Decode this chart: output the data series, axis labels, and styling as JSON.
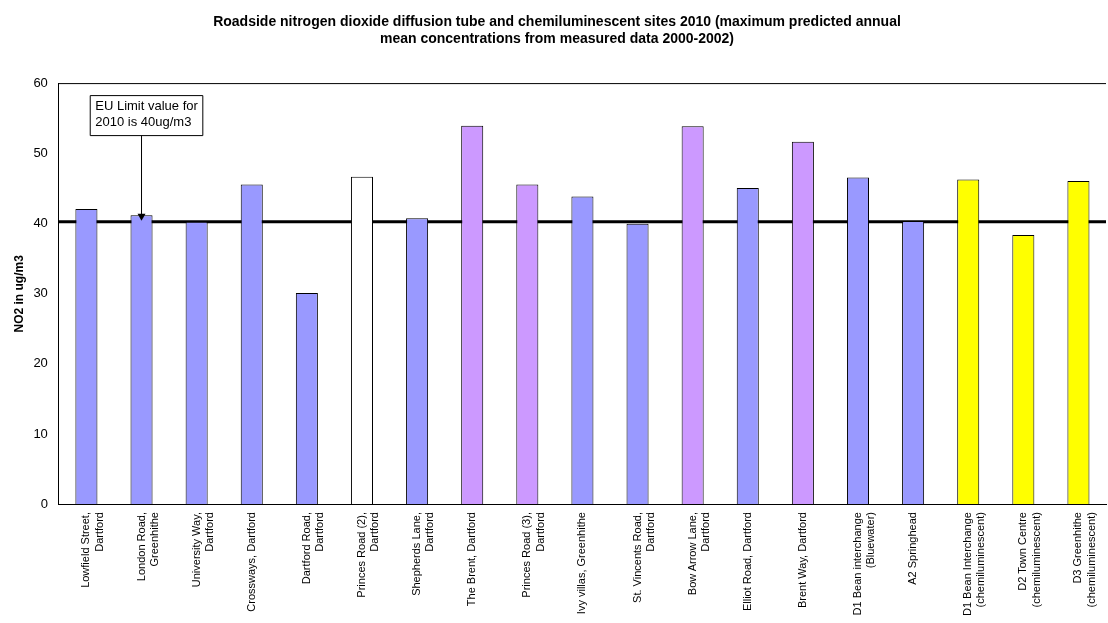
{
  "chart_data": {
    "type": "bar",
    "title": "Roadside nitrogen dioxide diffusion tube and chemiluminescent sites 2010 (maximum predicted annual mean concentrations from measured data 2000-2002)",
    "ylabel": "NO2 in ug/m3",
    "categories": [
      "Lowfield Street, Dartford",
      "London Road, Greenhithe",
      "University Way, Dartford",
      "Crossways, Dartford",
      "Dartford Road, Dartford",
      "Princes Road (2), Dartford",
      "Shepherds Lane, Dartford",
      "The Brent, Dartford",
      "Princes Road (3), Dartford",
      "Ivy villas, Greenhithe",
      "St. Vincents Road, Dartford",
      "Bow Arrow Lane, Dartford",
      "Elliot Road, Dartford",
      "Brent Way, Dartford",
      "D1 Bean interchange (Bluewater)",
      "A2 Springhead",
      "D1 Bean Interchange (chemiluminescent)",
      "D2 Town Centre (chemiluminescent)",
      "D3 Greenhithe (chemiluminescent)"
    ],
    "values": [
      42.1,
      41.2,
      40.3,
      45.6,
      30.1,
      46.7,
      40.8,
      54.0,
      45.6,
      43.9,
      40.0,
      53.9,
      45.1,
      51.7,
      46.6,
      40.4,
      46.3,
      38.4,
      46.1
    ],
    "colors": [
      "#9999ff",
      "#9999ff",
      "#9999ff",
      "#9999ff",
      "#9999ff",
      "#ffffff",
      "#9999ff",
      "#cc99ff",
      "#cc99ff",
      "#9999ff",
      "#9999ff",
      "#cc99ff",
      "#9999ff",
      "#cc99ff",
      "#9999ff",
      "#9999ff",
      "#ffff00",
      "#ffff00",
      "#ffff00"
    ],
    "ylim": [
      0,
      60
    ],
    "yticks": [
      0,
      10,
      20,
      30,
      40,
      50,
      60
    ],
    "grid": false,
    "legend": false,
    "ref_lines": [
      {
        "axis": "y",
        "value": 40.3,
        "color": "#000000"
      }
    ],
    "annotations": [
      {
        "text": "EU Limit value for 2010 is 40ug/m3",
        "x": "London Road, Greenhithe",
        "y": 40.3
      }
    ]
  }
}
